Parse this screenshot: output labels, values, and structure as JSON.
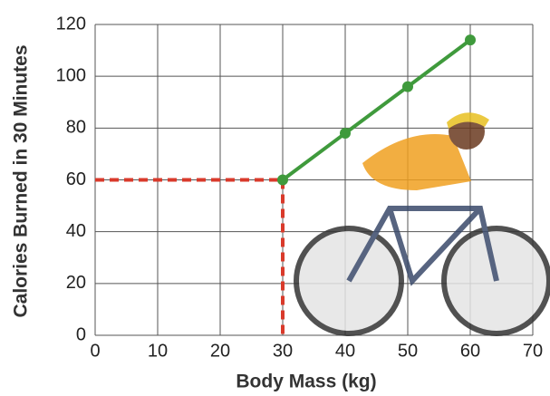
{
  "chart_data": {
    "type": "line",
    "xlabel": "Body Mass (kg)",
    "ylabel": "Calories Burned in 30 Minutes",
    "x": [
      30,
      40,
      50,
      60
    ],
    "series": [
      {
        "name": "Calories",
        "color": "#3f9a3c",
        "values": [
          60,
          78,
          96,
          114
        ]
      }
    ],
    "xlim": [
      0,
      70
    ],
    "xticks": [
      0,
      10,
      20,
      30,
      40,
      50,
      60,
      70
    ],
    "ylim": [
      0,
      120
    ],
    "yticks": [
      0,
      20,
      40,
      60,
      80,
      100,
      120
    ],
    "grid": true,
    "guide_color": "#d93a2b"
  }
}
